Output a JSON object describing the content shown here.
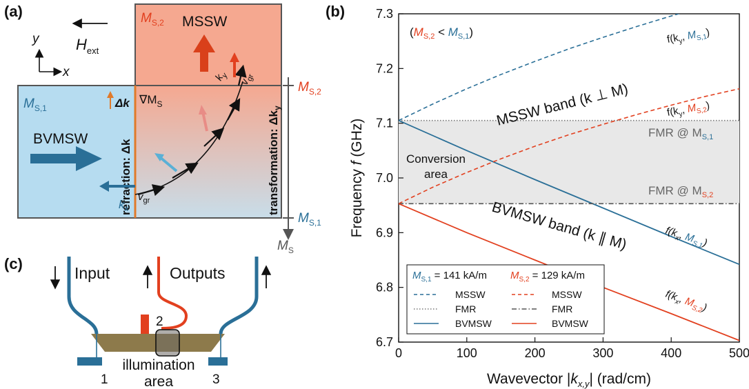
{
  "colors": {
    "blue": "#2a6f97",
    "red": "#e2401f",
    "orange": "#e07a2a",
    "light_blue": "#b6dcf0",
    "light_red": "#f5a890",
    "gray_area": "#e8e8e8",
    "olive": "#8d7a4b"
  },
  "panel_a": {
    "label": "(a)",
    "axis_y": "y",
    "axis_x": "x",
    "h_ext": "H",
    "h_ext_sub": "ext",
    "ms2_top": "M",
    "ms2_top_sub": "S,2",
    "ms1_left": "M",
    "ms1_left_sub": "S,1",
    "mssw": "MSSW",
    "bvmsw": "BVMSW",
    "grad": "∇M",
    "grad_sub": "S",
    "dk": "Δk",
    "refraction": "refraction: Δk",
    "transformation": "transformation: Δk",
    "transformation_sub": "y",
    "kx": "k",
    "kx_sub": "x",
    "ky": "k",
    "ky_sub": "y",
    "vgr": "v",
    "vgr_sub": "gr",
    "scale_top": "M",
    "scale_top_sub": "S,2",
    "scale_bottom": "M",
    "scale_bottom_sub": "S,1",
    "scale_axis": "M",
    "scale_axis_sub": "S"
  },
  "panel_c": {
    "label": "(c)",
    "input": "Input",
    "outputs": "Outputs",
    "port1": "1",
    "port2": "2",
    "port3": "3",
    "illum_line1": "illumination",
    "illum_line2": "area"
  },
  "panel_b": {
    "label": "(b)",
    "condition_open": "(",
    "condition_m2": "M",
    "condition_m2_sub": "S,2",
    "condition_lt": " < ",
    "condition_m1": "M",
    "condition_m1_sub": "S,1",
    "condition_close": ")",
    "mssw_band": "MSSW band (k ⊥ M)",
    "bvmsw_band": "BVMSW band (k ∥ M)",
    "conversion_line1": "Conversion",
    "conversion_line2": "area",
    "fmr1": "FMR @ M",
    "fmr1_sub": "S,1",
    "fmr2": "FMR @ M",
    "fmr2_sub": "S,2",
    "curve_f_mssw1": "f(k",
    "curve_f_mssw1_sub": "y",
    "curve_f_mssw1_m": "M",
    "curve_f_mssw1_msub": "S,1",
    "curve_f_mssw2": "f(k",
    "curve_f_mssw2_sub": "y",
    "curve_f_mssw2_m": "M",
    "curve_f_mssw2_msub": "S,2",
    "curve_f_bv1": "f(k",
    "curve_f_bv1_sub": "x",
    "curve_f_bv1_m": "M",
    "curve_f_bv1_msub": "S,1",
    "curve_f_bv2": "f(k",
    "curve_f_bv2_sub": "x",
    "curve_f_bv2_m": "M",
    "curve_f_bv2_msub": "S,2",
    "legend": {
      "ms1_head": "M",
      "ms1_head_sub": "S,1",
      "ms1_value": " = 141 kA/m",
      "ms2_head": "M",
      "ms2_head_sub": "S,2",
      "ms2_value": " = 129 kA/m",
      "entries": [
        "MSSW",
        "FMR",
        "BVMSW"
      ]
    }
  },
  "chart_data": {
    "type": "line",
    "xlabel": "Wavevector |k_x,y| (rad/cm)",
    "ylabel": "Frequency f (GHz)",
    "xlim": [
      0,
      500
    ],
    "ylim": [
      6.7,
      7.3
    ],
    "x_ticks": [
      0,
      100,
      200,
      300,
      400,
      500
    ],
    "y_ticks": [
      6.7,
      6.8,
      6.9,
      7.0,
      7.1,
      7.2,
      7.3
    ],
    "x_tick_labels": [
      "0",
      "100",
      "200",
      "300",
      "400",
      "500"
    ],
    "y_tick_labels": [
      "6.7",
      "6.8",
      "6.9",
      "7.0",
      "7.1",
      "7.2",
      "7.3"
    ],
    "conversion_area": {
      "x": [
        0,
        500
      ],
      "y": [
        6.953,
        7.105
      ]
    },
    "series": [
      {
        "name": "MSSW",
        "group": "M_S,1",
        "style": "dashed",
        "color": "#2a6f97",
        "x": [
          0,
          50,
          100,
          150,
          200,
          250,
          300,
          350,
          400,
          450,
          500
        ],
        "y": [
          7.105,
          7.135,
          7.163,
          7.189,
          7.213,
          7.236,
          7.257,
          7.277,
          7.296,
          7.314,
          7.331
        ]
      },
      {
        "name": "FMR",
        "group": "M_S,1",
        "style": "dotted",
        "color": "#777777",
        "x": [
          0,
          500
        ],
        "y": [
          7.105,
          7.105
        ]
      },
      {
        "name": "BVMSW",
        "group": "M_S,1",
        "style": "solid",
        "color": "#2a6f97",
        "x": [
          0,
          100,
          200,
          300,
          400,
          500
        ],
        "y": [
          7.105,
          7.05,
          6.997,
          6.945,
          6.893,
          6.842
        ]
      },
      {
        "name": "MSSW",
        "group": "M_S,2",
        "style": "dashed",
        "color": "#e2401f",
        "x": [
          0,
          50,
          100,
          150,
          200,
          250,
          300,
          350,
          400,
          450,
          500
        ],
        "y": [
          6.953,
          6.983,
          7.01,
          7.035,
          7.058,
          7.079,
          7.098,
          7.116,
          7.133,
          7.149,
          7.163
        ]
      },
      {
        "name": "FMR",
        "group": "M_S,2",
        "style": "dashdot",
        "color": "#555555",
        "x": [
          0,
          500
        ],
        "y": [
          6.953,
          6.953
        ]
      },
      {
        "name": "BVMSW",
        "group": "M_S,2",
        "style": "solid",
        "color": "#e2401f",
        "x": [
          0,
          100,
          200,
          300,
          400,
          500
        ],
        "y": [
          6.953,
          6.9,
          6.85,
          6.8,
          6.752,
          6.703
        ]
      }
    ]
  }
}
